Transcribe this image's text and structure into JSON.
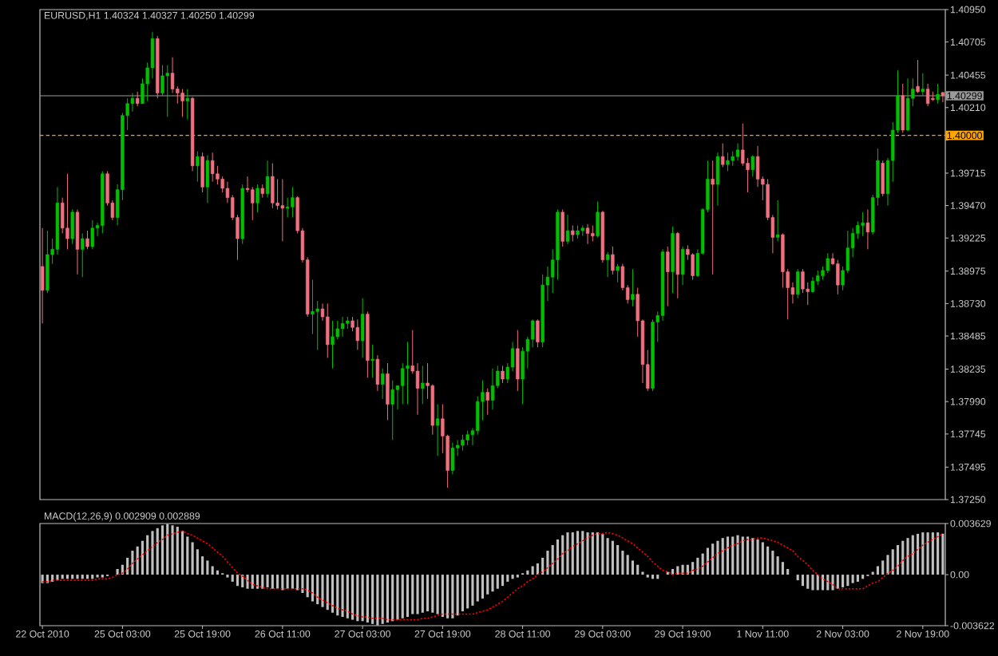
{
  "chart_data": [
    {
      "type": "candlestick",
      "title": "EURUSD,H1 1.40324 1.40327 1.40250 1.40299",
      "categories": [
        null,
        null,
        null,
        null,
        null,
        null,
        null,
        null,
        null,
        null,
        null,
        null,
        null,
        null,
        null,
        null,
        null,
        null,
        null,
        null,
        null,
        null,
        null,
        null,
        null,
        null,
        null,
        null,
        null,
        null,
        null,
        null,
        null,
        null,
        null,
        null,
        null,
        null,
        null,
        null,
        null,
        null,
        null,
        null,
        null,
        null,
        null,
        null,
        null,
        null,
        null,
        null,
        null,
        null,
        null,
        null,
        null,
        null,
        null,
        null,
        null,
        null,
        null,
        null,
        null,
        null,
        null,
        null,
        null,
        null,
        null,
        null,
        null,
        null,
        null,
        null,
        null,
        null,
        null,
        null,
        null,
        null,
        null,
        null,
        null,
        null,
        null,
        null,
        null,
        null,
        null,
        null,
        null,
        null,
        null,
        null,
        null,
        null,
        null,
        null,
        null,
        null,
        null,
        null,
        null,
        null,
        null,
        null,
        null,
        null,
        null,
        null,
        null,
        null,
        null,
        null,
        null,
        null,
        null,
        null,
        null,
        null,
        null,
        null,
        null,
        null,
        null,
        null,
        null,
        null,
        null,
        null,
        null,
        null,
        null,
        null,
        null,
        null,
        null,
        null,
        null,
        null,
        null,
        null,
        null,
        null,
        null,
        null,
        null,
        null,
        null,
        null,
        null,
        null,
        null,
        null,
        null,
        null,
        null,
        null,
        null,
        null,
        null,
        null,
        null,
        null,
        null,
        null,
        null,
        null,
        null,
        null,
        null,
        null,
        null,
        null,
        null,
        null,
        null,
        null,
        null
      ],
      "ohlc": [
        [
          1.3901,
          1.393,
          1.3858,
          1.3883
        ],
        [
          1.3883,
          1.3928,
          1.3881,
          1.391
        ],
        [
          1.391,
          1.3922,
          1.3903,
          1.3914
        ],
        [
          1.3914,
          1.3961,
          1.391,
          1.3949
        ],
        [
          1.3949,
          1.3953,
          1.3926,
          1.393
        ],
        [
          1.393,
          1.3971,
          1.3914,
          1.3922
        ],
        [
          1.3922,
          1.3944,
          1.3918,
          1.3942
        ],
        [
          1.3942,
          1.3944,
          1.3895,
          1.3914
        ],
        [
          1.3914,
          1.3926,
          1.3893,
          1.3922
        ],
        [
          1.3922,
          1.3928,
          1.3914,
          1.3916
        ],
        [
          1.3916,
          1.3936,
          1.3914,
          1.393
        ],
        [
          1.393,
          1.3934,
          1.3924,
          1.3932
        ],
        [
          1.3932,
          1.3973,
          1.3926,
          1.3971
        ],
        [
          1.3971,
          1.3973,
          1.3947,
          1.3949
        ],
        [
          1.3949,
          1.3951,
          1.3936,
          1.3938
        ],
        [
          1.3938,
          1.3963,
          1.3932,
          1.3959
        ],
        [
          1.3959,
          1.4017,
          1.3951,
          1.4015
        ],
        [
          1.4015,
          1.4028,
          1.4004,
          1.4024
        ],
        [
          1.4024,
          1.4032,
          1.4018,
          1.4028
        ],
        [
          1.4028,
          1.4033,
          1.4022,
          1.4024
        ],
        [
          1.4024,
          1.4043,
          1.4024,
          1.4039
        ],
        [
          1.4039,
          1.4055,
          1.4026,
          1.4051
        ],
        [
          1.4051,
          1.4078,
          1.4043,
          1.4073
        ],
        [
          1.4073,
          1.4075,
          1.4028,
          1.4032
        ],
        [
          1.4032,
          1.4053,
          1.403,
          1.4045
        ],
        [
          1.4045,
          1.4053,
          1.4014,
          1.4047
        ],
        [
          1.4047,
          1.4059,
          1.4032,
          1.4035
        ],
        [
          1.4035,
          1.4037,
          1.4024,
          1.4032
        ],
        [
          1.4032,
          1.4035,
          1.4014,
          1.4026
        ],
        [
          1.4026,
          1.4035,
          1.4012,
          1.4028
        ],
        [
          1.4028,
          1.4029,
          1.3973,
          1.3977
        ],
        [
          1.3977,
          1.3988,
          1.3965,
          1.3984
        ],
        [
          1.3984,
          1.3987,
          1.3957,
          1.3961
        ],
        [
          1.3961,
          1.3985,
          1.3949,
          1.3981
        ],
        [
          1.3981,
          1.3987,
          1.3965,
          1.3971
        ],
        [
          1.3971,
          1.3977,
          1.3963,
          1.3967
        ],
        [
          1.3967,
          1.3969,
          1.3957,
          1.396
        ],
        [
          1.396,
          1.3965,
          1.3949,
          1.3953
        ],
        [
          1.3953,
          1.3955,
          1.3936,
          1.3938
        ],
        [
          1.3938,
          1.394,
          1.3906,
          1.3922
        ],
        [
          1.3922,
          1.3963,
          1.3918,
          1.396
        ],
        [
          1.396,
          1.3969,
          1.3957,
          1.3959
        ],
        [
          1.3959,
          1.3961,
          1.3936,
          1.3949
        ],
        [
          1.3949,
          1.3963,
          1.3942,
          1.396
        ],
        [
          1.396,
          1.3963,
          1.3953,
          1.3956
        ],
        [
          1.3956,
          1.3981,
          1.3953,
          1.3969
        ],
        [
          1.3969,
          1.3979,
          1.3945,
          1.3949
        ],
        [
          1.3949,
          1.3967,
          1.3944,
          1.3947
        ],
        [
          1.3947,
          1.3967,
          1.392,
          1.3945
        ],
        [
          1.3945,
          1.3953,
          1.3938,
          1.3946
        ],
        [
          1.3946,
          1.3961,
          1.3938,
          1.3953
        ],
        [
          1.3953,
          1.3954,
          1.3926,
          1.3928
        ],
        [
          1.3928,
          1.393,
          1.3904,
          1.3906
        ],
        [
          1.3906,
          1.3908,
          1.3863,
          1.3865
        ],
        [
          1.3865,
          1.3891,
          1.385,
          1.3867
        ],
        [
          1.3867,
          1.3875,
          1.3838,
          1.3869
        ],
        [
          1.3869,
          1.3873,
          1.386,
          1.3863
        ],
        [
          1.3863,
          1.3873,
          1.3832,
          1.3842
        ],
        [
          1.3842,
          1.386,
          1.3824,
          1.3848
        ],
        [
          1.3848,
          1.386,
          1.3846,
          1.3854
        ],
        [
          1.3854,
          1.3863,
          1.3848,
          1.3858
        ],
        [
          1.3858,
          1.3863,
          1.3854,
          1.386
        ],
        [
          1.386,
          1.3863,
          1.3852,
          1.3855
        ],
        [
          1.3855,
          1.3861,
          1.3838,
          1.3845
        ],
        [
          1.3845,
          1.3877,
          1.3832,
          1.3865
        ],
        [
          1.3865,
          1.3867,
          1.3817,
          1.383
        ],
        [
          1.383,
          1.3842,
          1.3817,
          1.3831
        ],
        [
          1.3831,
          1.3834,
          1.3807,
          1.3812
        ],
        [
          1.3812,
          1.3824,
          1.3801,
          1.382
        ],
        [
          1.382,
          1.3828,
          1.3785,
          1.3797
        ],
        [
          1.3797,
          1.3815,
          1.377,
          1.3808
        ],
        [
          1.3808,
          1.3811,
          1.3793,
          1.3811
        ],
        [
          1.3811,
          1.3828,
          1.3797,
          1.3824
        ],
        [
          1.3824,
          1.3844,
          1.3797,
          1.3826
        ],
        [
          1.3826,
          1.3853,
          1.382,
          1.3822
        ],
        [
          1.3822,
          1.3828,
          1.3789,
          1.3809
        ],
        [
          1.3809,
          1.3826,
          1.3797,
          1.3813
        ],
        [
          1.3813,
          1.3828,
          1.3801,
          1.3811
        ],
        [
          1.3811,
          1.3812,
          1.3774,
          1.3781
        ],
        [
          1.3781,
          1.3797,
          1.3758,
          1.3786
        ],
        [
          1.3786,
          1.3797,
          1.376,
          1.3773
        ],
        [
          1.3773,
          1.3774,
          1.3734,
          1.3747
        ],
        [
          1.3747,
          1.3768,
          1.3744,
          1.3764
        ],
        [
          1.3764,
          1.377,
          1.3758,
          1.3766
        ],
        [
          1.3766,
          1.3774,
          1.3762,
          1.377
        ],
        [
          1.377,
          1.3777,
          1.3766,
          1.3774
        ],
        [
          1.3774,
          1.3779,
          1.3766,
          1.3777
        ],
        [
          1.3777,
          1.3803,
          1.3774,
          1.3799
        ],
        [
          1.3799,
          1.3815,
          1.3785,
          1.3806
        ],
        [
          1.3806,
          1.3809,
          1.3789,
          1.38
        ],
        [
          1.38,
          1.3824,
          1.3793,
          1.3811
        ],
        [
          1.3811,
          1.3826,
          1.3809,
          1.3822
        ],
        [
          1.3822,
          1.3826,
          1.3813,
          1.3816
        ],
        [
          1.3816,
          1.3828,
          1.3813,
          1.3825
        ],
        [
          1.3825,
          1.3844,
          1.3822,
          1.3839
        ],
        [
          1.3839,
          1.3853,
          1.3807,
          1.3816
        ],
        [
          1.3816,
          1.384,
          1.3797,
          1.3837
        ],
        [
          1.3837,
          1.3848,
          1.3824,
          1.3846
        ],
        [
          1.3846,
          1.3861,
          1.384,
          1.386
        ],
        [
          1.386,
          1.3861,
          1.384,
          1.3844
        ],
        [
          1.3844,
          1.3895,
          1.384,
          1.3887
        ],
        [
          1.3887,
          1.3901,
          1.3875,
          1.3893
        ],
        [
          1.3893,
          1.3914,
          1.3881,
          1.3906
        ],
        [
          1.3906,
          1.3944,
          1.3891,
          1.3942
        ],
        [
          1.3942,
          1.3944,
          1.3916,
          1.392
        ],
        [
          1.392,
          1.394,
          1.3918,
          1.3928
        ],
        [
          1.3928,
          1.3932,
          1.392,
          1.3925
        ],
        [
          1.3925,
          1.3932,
          1.3922,
          1.3928
        ],
        [
          1.3928,
          1.3932,
          1.3924,
          1.393
        ],
        [
          1.393,
          1.3933,
          1.3918,
          1.3926
        ],
        [
          1.3926,
          1.3932,
          1.392,
          1.3924
        ],
        [
          1.3924,
          1.395,
          1.3923,
          1.3942
        ],
        [
          1.3942,
          1.3943,
          1.3904,
          1.3906
        ],
        [
          1.3906,
          1.3912,
          1.3893,
          1.391
        ],
        [
          1.391,
          1.3916,
          1.3895,
          1.3898
        ],
        [
          1.3898,
          1.3903,
          1.3889,
          1.3901
        ],
        [
          1.3901,
          1.3903,
          1.3883,
          1.3885
        ],
        [
          1.3885,
          1.3887,
          1.3873,
          1.3876
        ],
        [
          1.3876,
          1.3899,
          1.3871,
          1.388
        ],
        [
          1.388,
          1.3885,
          1.3848,
          1.386
        ],
        [
          1.386,
          1.3861,
          1.3813,
          1.3827
        ],
        [
          1.3827,
          1.3838,
          1.3807,
          1.3809
        ],
        [
          1.3809,
          1.3861,
          1.3807,
          1.3859
        ],
        [
          1.3859,
          1.3867,
          1.3844,
          1.3864
        ],
        [
          1.3864,
          1.3914,
          1.386,
          1.3912
        ],
        [
          1.3912,
          1.3916,
          1.3871,
          1.3897
        ],
        [
          1.3897,
          1.3931,
          1.3881,
          1.3926
        ],
        [
          1.3926,
          1.3927,
          1.3877,
          1.3895
        ],
        [
          1.3895,
          1.3916,
          1.3887,
          1.3914
        ],
        [
          1.3914,
          1.3917,
          1.3906,
          1.391
        ],
        [
          1.391,
          1.3911,
          1.3891,
          1.3894
        ],
        [
          1.3894,
          1.3914,
          1.3893,
          1.3911
        ],
        [
          1.3911,
          1.3945,
          1.391,
          1.3944
        ],
        [
          1.3944,
          1.3981,
          1.3942,
          1.3967
        ],
        [
          1.3967,
          1.3981,
          1.3895,
          1.3963
        ],
        [
          1.3963,
          1.3987,
          1.3947,
          1.3984
        ],
        [
          1.3984,
          1.3994,
          1.3976,
          1.3978
        ],
        [
          1.3978,
          1.3987,
          1.3973,
          1.3981
        ],
        [
          1.3981,
          1.3988,
          1.3977,
          1.3984
        ],
        [
          1.3984,
          1.3994,
          1.3981,
          1.3989
        ],
        [
          1.3989,
          1.4009,
          1.3977,
          1.3979
        ],
        [
          1.3979,
          1.3983,
          1.3957,
          1.3974
        ],
        [
          1.3974,
          1.3985,
          1.3969,
          1.3984
        ],
        [
          1.3984,
          1.3992,
          1.3961,
          1.3967
        ],
        [
          1.3967,
          1.3969,
          1.3951,
          1.3963
        ],
        [
          1.3963,
          1.3967,
          1.3936,
          1.3938
        ],
        [
          1.3938,
          1.394,
          1.3911,
          1.3923
        ],
        [
          1.3923,
          1.3951,
          1.392,
          1.3925
        ],
        [
          1.3925,
          1.3926,
          1.3885,
          1.3897
        ],
        [
          1.3897,
          1.3899,
          1.3861,
          1.3885
        ],
        [
          1.3885,
          1.3889,
          1.3873,
          1.388
        ],
        [
          1.388,
          1.3899,
          1.3877,
          1.3897
        ],
        [
          1.3897,
          1.3899,
          1.3881,
          1.3884
        ],
        [
          1.3884,
          1.3889,
          1.3872,
          1.3882
        ],
        [
          1.3882,
          1.3893,
          1.3881,
          1.389
        ],
        [
          1.389,
          1.3898,
          1.3887,
          1.3894
        ],
        [
          1.3894,
          1.3901,
          1.3891,
          1.3898
        ],
        [
          1.3898,
          1.3911,
          1.3896,
          1.3907
        ],
        [
          1.3907,
          1.3911,
          1.3902,
          1.3903
        ],
        [
          1.3903,
          1.3906,
          1.388,
          1.3887
        ],
        [
          1.3887,
          1.3901,
          1.3883,
          1.3898
        ],
        [
          1.3898,
          1.3928,
          1.3896,
          1.3915
        ],
        [
          1.3915,
          1.393,
          1.3908,
          1.3926
        ],
        [
          1.3926,
          1.3935,
          1.3922,
          1.3932
        ],
        [
          1.3932,
          1.3942,
          1.3924,
          1.3934
        ],
        [
          1.3934,
          1.3944,
          1.3914,
          1.3927
        ],
        [
          1.3927,
          1.3955,
          1.3925,
          1.3953
        ],
        [
          1.3953,
          1.399,
          1.3947,
          1.3981
        ],
        [
          1.3979,
          1.3981,
          1.3954,
          1.3956
        ],
        [
          1.3956,
          1.3983,
          1.3947,
          1.3981
        ],
        [
          1.3981,
          1.401,
          1.3965,
          1.4004
        ],
        [
          1.4004,
          1.4049,
          1.4002,
          1.403
        ],
        [
          1.403,
          1.4039,
          1.4002,
          1.4004
        ],
        [
          1.4004,
          1.4043,
          1.4003,
          1.4028
        ],
        [
          1.4028,
          1.4043,
          1.4022,
          1.4035
        ],
        [
          1.4037,
          1.4057,
          1.4032,
          1.4033
        ],
        [
          1.4033,
          1.4047,
          1.403,
          1.4035
        ],
        [
          1.4035,
          1.4039,
          1.4022,
          1.4024
        ],
        [
          1.4028,
          1.4033,
          1.4026,
          1.4027
        ],
        [
          1.4027,
          1.4039,
          1.4024,
          1.4031
        ],
        [
          1.40324,
          1.40327,
          1.4025,
          1.40299
        ]
      ],
      "colors": [
        "#f07080",
        "#00c000",
        "#00c000",
        "#00c000",
        "#f07080",
        "#f07080",
        "#00c000",
        "#f07080",
        "#00c000",
        "#f07080",
        "#00c000",
        "#00c000",
        "#00c000",
        "#f07080",
        "#f07080",
        "#00c000",
        "#00c000",
        "#00c000",
        "#00c000",
        "#f07080",
        "#00c000",
        "#00c000",
        "#00c000",
        "#f07080",
        "#00c000",
        "#00c000",
        "#f07080",
        "#f07080",
        "#f07080",
        "#00c000",
        "#f07080",
        "#00c000",
        "#f07080",
        "#00c000",
        "#f07080",
        "#f07080",
        "#f07080",
        "#f07080",
        "#f07080",
        "#f07080",
        "#00c000",
        "#f07080",
        "#f07080",
        "#00c000",
        "#f07080",
        "#00c000",
        "#f07080",
        "#f07080",
        "#f07080",
        "#00c000",
        "#00c000",
        "#f07080",
        "#f07080",
        "#f07080",
        "#00c000",
        "#00c000",
        "#f07080",
        "#f07080",
        "#00c000",
        "#00c000",
        "#00c000",
        "#00c000",
        "#f07080",
        "#f07080",
        "#00c000",
        "#f07080",
        "#00c000",
        "#f07080",
        "#00c000",
        "#f07080",
        "#00c000",
        "#00c000",
        "#00c000",
        "#00c000",
        "#f07080",
        "#f07080",
        "#00c000",
        "#f07080",
        "#f07080",
        "#00c000",
        "#f07080",
        "#f07080",
        "#00c000",
        "#00c000",
        "#00c000",
        "#00c000",
        "#00c000",
        "#00c000",
        "#00c000",
        "#f07080",
        "#00c000",
        "#00c000",
        "#f07080",
        "#00c000",
        "#00c000",
        "#f07080",
        "#00c000",
        "#00c000",
        "#00c000",
        "#f07080",
        "#00c000",
        "#00c000",
        "#00c000",
        "#00c000",
        "#f07080",
        "#00c000",
        "#f07080",
        "#00c000",
        "#00c000",
        "#f07080",
        "#f07080",
        "#00c000",
        "#f07080",
        "#00c000",
        "#f07080",
        "#00c000",
        "#f07080",
        "#f07080",
        "#00c000",
        "#f07080",
        "#f07080",
        "#f07080",
        "#00c000",
        "#00c000",
        "#00c000",
        "#f07080",
        "#00c000",
        "#f07080",
        "#00c000",
        "#f07080",
        "#f07080",
        "#00c000",
        "#00c000",
        "#00c000",
        "#f07080",
        "#00c000",
        "#f07080",
        "#00c000",
        "#00c000",
        "#00c000",
        "#f07080",
        "#f07080",
        "#00c000",
        "#f07080",
        "#f07080",
        "#f07080",
        "#f07080",
        "#00c000",
        "#f07080",
        "#f07080",
        "#f07080",
        "#00c000",
        "#f07080",
        "#f07080",
        "#00c000",
        "#00c000",
        "#00c000",
        "#00c000",
        "#f07080",
        "#f07080",
        "#00c000",
        "#00c000",
        "#00c000",
        "#00c000",
        "#00c000",
        "#f07080",
        "#00c000",
        "#00c000",
        "#f07080",
        "#00c000",
        "#00c000",
        "#00c000",
        "#f07080",
        "#00c000",
        "#00c000",
        "#f07080",
        "#00c000",
        "#f07080",
        "#f07080",
        "#00c000",
        "#f07080"
      ],
      "ylim": [
        1.3725,
        1.4095
      ],
      "yticks": [
        {
          "value": 1.4095,
          "label": "1.40950"
        },
        1.40705,
        1.40455,
        {
          "value": 1.4021,
          "label": "1.40210"
        },
        {
          "value": 1.39965,
          "label": null
        },
        1.39715,
        {
          "value": 1.3947,
          "label": "1.39470"
        },
        1.39225,
        1.38975,
        {
          "value": 1.3873,
          "label": "1.38730"
        },
        1.38485,
        1.38235,
        {
          "value": 1.3799,
          "label": "1.37990"
        },
        1.37745,
        1.37495,
        {
          "value": 1.3725,
          "label": "1.37250"
        }
      ],
      "ref_lines": [
        {
          "axis": "y",
          "value": 1.4,
          "label": "1.40000",
          "color": "#ffa500",
          "line_style": "dashed"
        },
        {
          "axis": "y",
          "value": 1.40299,
          "label": "1.40299",
          "color": "#9a9a9a"
        }
      ],
      "tick_labels": "y"
    },
    {
      "type": "bar",
      "title": "MACD(12,26,9) 0.002909 0.002889",
      "categories": [
        "22 Oct 2010",
        null,
        null,
        null,
        null,
        null,
        null,
        null,
        null,
        null,
        null,
        null,
        null,
        null,
        null,
        null,
        "25 Oct 03:00",
        null,
        null,
        null,
        null,
        null,
        null,
        null,
        null,
        null,
        null,
        null,
        null,
        null,
        null,
        null,
        "25 Oct 19:00",
        null,
        null,
        null,
        null,
        null,
        null,
        null,
        null,
        null,
        null,
        null,
        null,
        null,
        null,
        null,
        "26 Oct 11:00",
        null,
        null,
        null,
        null,
        null,
        null,
        null,
        null,
        null,
        null,
        null,
        null,
        null,
        null,
        null,
        "27 Oct 03:00",
        null,
        null,
        null,
        null,
        null,
        null,
        null,
        null,
        null,
        null,
        null,
        null,
        null,
        null,
        null,
        "27 Oct 19:00",
        null,
        null,
        null,
        null,
        null,
        null,
        null,
        null,
        null,
        null,
        null,
        null,
        null,
        null,
        null,
        "28 Oct 11:00",
        null,
        null,
        null,
        null,
        null,
        null,
        null,
        null,
        null,
        null,
        null,
        null,
        null,
        null,
        null,
        "29 Oct 03:00",
        null,
        null,
        null,
        null,
        null,
        null,
        null,
        null,
        null,
        null,
        null,
        null,
        null,
        null,
        null,
        "29 Oct 19:00",
        null,
        null,
        null,
        null,
        null,
        null,
        null,
        null,
        null,
        null,
        null,
        null,
        null,
        null,
        null,
        "1 Nov 11:00",
        null,
        null,
        null,
        null,
        null,
        null,
        null,
        null,
        null,
        null,
        null,
        null,
        null,
        null,
        null,
        "2 Nov 03:00",
        null,
        null,
        null,
        null,
        null,
        null,
        null,
        null,
        null,
        null,
        null,
        null,
        null,
        null,
        null,
        "2 Nov 19:00",
        null,
        null,
        null,
        null
      ],
      "series": [
        {
          "color": "#c0c0c0",
          "values": [
            -0.0006,
            -0.0006,
            -0.0005,
            -0.0004,
            -0.0003,
            -0.0003,
            -0.0003,
            -0.0003,
            -0.0003,
            -0.0003,
            -0.0003,
            -0.0002,
            -0.0002,
            -0.0001,
            0,
            0.0004,
            0.0007,
            0.0012,
            0.0017,
            0.002,
            0.0024,
            0.0028,
            0.0031,
            0.0033,
            0.0035,
            0.0036,
            0.0035,
            0.0034,
            0.0031,
            0.0027,
            0.0023,
            0.0018,
            0.0013,
            0.001,
            0.0006,
            0.0003,
            0.0001,
            -0.0002,
            -0.0005,
            -0.0008,
            -0.0009,
            -0.001,
            -0.001,
            -0.001,
            -0.001,
            -0.0009,
            -0.001,
            -0.001,
            -0.0011,
            -0.001,
            -0.001,
            -0.0011,
            -0.0013,
            -0.0016,
            -0.0019,
            -0.0021,
            -0.0023,
            -0.0025,
            -0.0027,
            -0.0029,
            -0.003,
            -0.0031,
            -0.0032,
            -0.0033,
            -0.0033,
            -0.0034,
            -0.0035,
            -0.0036,
            -0.0035,
            -0.0034,
            -0.0033,
            -0.0032,
            -0.0031,
            -0.003,
            -0.0028,
            -0.0028,
            -0.0027,
            -0.0026,
            -0.0027,
            -0.0028,
            -0.003,
            -0.0031,
            -0.0031,
            -0.0029,
            -0.0026,
            -0.0024,
            -0.0022,
            -0.0019,
            -0.0017,
            -0.0014,
            -0.0012,
            -0.001,
            -0.0008,
            -0.0005,
            -0.0003,
            -0.0002,
            0.0001,
            0.0003,
            0.0006,
            0.0008,
            0.0012,
            0.0017,
            0.0021,
            0.0025,
            0.0028,
            0.003,
            0.003,
            0.0031,
            0.0031,
            0.003,
            0.003,
            0.003,
            0.0029,
            0.0026,
            0.0024,
            0.0021,
            0.0017,
            0.0014,
            0.001,
            0.0007,
            0.0002,
            -0.0002,
            -0.0003,
            -0.0003,
            0,
            0.0002,
            0.0004,
            0.0006,
            0.0007,
            0.0007,
            0.0009,
            0.0012,
            0.0015,
            0.0019,
            0.0022,
            0.0024,
            0.0026,
            0.0027,
            0.0027,
            0.0028,
            0.0027,
            0.0027,
            0.0026,
            0.0025,
            0.0023,
            0.002,
            0.0017,
            0.0013,
            0.0009,
            0.0004,
            0,
            -0.0004,
            -0.0008,
            -0.001,
            -0.0011,
            -0.0011,
            -0.0011,
            -0.0011,
            -0.0011,
            -0.001,
            -0.0009,
            -0.0008,
            -0.0006,
            -0.0005,
            -0.0003,
            -0.0001,
            0.0002,
            0.0006,
            0.001,
            0.0014,
            0.0018,
            0.0021,
            0.0024,
            0.0026,
            0.0028,
            0.0029,
            0.003,
            0.003,
            0.003,
            0.003,
            0.002909
          ]
        },
        {
          "type": "line",
          "color": "#ff0000",
          "line_style": "dotted",
          "values": [
            -0.0005,
            -0.0005,
            -0.0004,
            -0.0004,
            -0.0004,
            -0.0004,
            -0.0004,
            -0.0004,
            -0.0004,
            -0.0004,
            -0.0004,
            -0.0003,
            -0.0003,
            -0.0003,
            -0.0002,
            0,
            0.0001,
            0.0004,
            0.0008,
            0.0011,
            0.0014,
            0.0017,
            0.002,
            0.0023,
            0.0025,
            0.0028,
            0.0029,
            0.003,
            0.0031,
            0.0029,
            0.0028,
            0.0026,
            0.0024,
            0.0022,
            0.0019,
            0.0016,
            0.0013,
            0.0009,
            0.0005,
            0.0001,
            -0.0001,
            -0.0004,
            -0.0007,
            -0.0008,
            -0.0009,
            -0.001,
            -0.001,
            -0.001,
            -0.001,
            -0.001,
            -0.001,
            -0.001,
            -0.001,
            -0.0011,
            -0.0013,
            -0.0016,
            -0.0018,
            -0.002,
            -0.0022,
            -0.0024,
            -0.0025,
            -0.0026,
            -0.0028,
            -0.0029,
            -0.003,
            -0.003,
            -0.0031,
            -0.0031,
            -0.0031,
            -0.0032,
            -0.0032,
            -0.0032,
            -0.0032,
            -0.0032,
            -0.0032,
            -0.0032,
            -0.0031,
            -0.0031,
            -0.003,
            -0.0029,
            -0.0028,
            -0.0028,
            -0.0028,
            -0.0028,
            -0.0028,
            -0.0028,
            -0.0028,
            -0.0027,
            -0.0026,
            -0.0025,
            -0.0023,
            -0.0021,
            -0.0019,
            -0.0016,
            -0.0013,
            -0.001,
            -0.0008,
            -0.0005,
            -0.0003,
            0,
            0.0002,
            0.0005,
            0.0008,
            0.0011,
            0.0015,
            0.0017,
            0.002,
            0.0022,
            0.0024,
            0.0026,
            0.0028,
            0.0029,
            0.0029,
            0.003,
            0.0029,
            0.0028,
            0.0026,
            0.0024,
            0.0022,
            0.0019,
            0.0016,
            0.0013,
            0.0009,
            0.0006,
            0.0003,
            0.0002,
            0,
            0.0001,
            0.0001,
            0.0001,
            0.0003,
            0.0004,
            0.0006,
            0.0009,
            0.0012,
            0.0015,
            0.0017,
            0.0019,
            0.0021,
            0.0022,
            0.0024,
            0.0025,
            0.0025,
            0.0026,
            0.0026,
            0.0025,
            0.0024,
            0.0023,
            0.0021,
            0.0019,
            0.0017,
            0.0013,
            0.001,
            0.0007,
            0.0003,
            0,
            -0.0003,
            -0.0005,
            -0.0007,
            -0.001,
            -0.001,
            -0.001,
            -0.001,
            -0.001,
            -0.001,
            -0.0008,
            -0.0006,
            -0.0005,
            -0.0002,
            0.0001,
            0.0003,
            0.0006,
            0.001,
            0.0013,
            0.0015,
            0.0018,
            0.0021,
            0.0023,
            0.0025,
            0.0027,
            0.002889
          ]
        }
      ],
      "ylim": [
        -0.003622,
        0.003629
      ],
      "yticks": [
        0.003629,
        {
          "value": 0,
          "label": "0.00"
        },
        -0.003622
      ]
    }
  ]
}
